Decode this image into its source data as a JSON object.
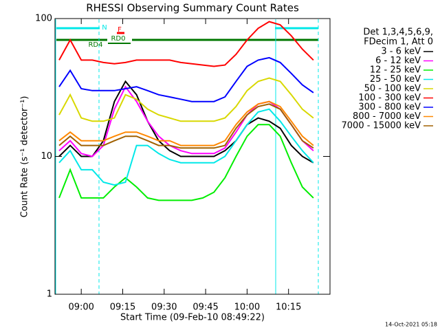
{
  "chart_data": {
    "type": "line",
    "title": "RHESSI Observing Summary Count Rates",
    "x_label": "Start Time (09-Feb-10 08:49:22)",
    "y_label": "Count Rate (s⁻¹ detector⁻¹)",
    "legend_header": [
      "Det 1,3,4,5,6,9,",
      "FDecim 1, Att 0"
    ],
    "timestamp": "14-Oct-2021 05:18",
    "annotations": [
      "N",
      "F",
      "RD0",
      "RD4"
    ],
    "ylog": true,
    "xlim": [
      "08:50:30",
      "10:30"
    ],
    "xticks": [
      "09:00",
      "09:15",
      "09:30",
      "09:45",
      "10:00",
      "10:15"
    ],
    "ylim": [
      1,
      100
    ],
    "yticks": [
      1,
      10,
      100
    ],
    "x": [
      "08:52",
      "08:56",
      "09:00",
      "09:04",
      "09:08",
      "09:12",
      "09:16",
      "09:20",
      "09:24",
      "09:28",
      "09:32",
      "09:36",
      "09:40",
      "09:44",
      "09:48",
      "09:52",
      "09:56",
      "10:00",
      "10:04",
      "10:08",
      "10:12",
      "10:16",
      "10:20",
      "10:24"
    ],
    "series": [
      {
        "name": "3 - 6 keV",
        "color": "#000000",
        "values": [
          10,
          12,
          10,
          10,
          13,
          25,
          35,
          28,
          18,
          13,
          11,
          10,
          10,
          10,
          10,
          11,
          13,
          17,
          19,
          18,
          16,
          12,
          10,
          9
        ]
      },
      {
        "name": "6 - 12 keV",
        "color": "#ff00ff",
        "values": [
          11,
          13,
          10.5,
          10,
          12,
          22,
          32,
          25,
          18,
          14,
          12,
          11,
          10.5,
          10.5,
          10.5,
          11.5,
          15,
          20,
          24,
          25,
          22,
          17,
          13,
          11
        ]
      },
      {
        "name": "12 - 25 keV",
        "color": "#00ee00",
        "values": [
          5,
          8,
          5,
          5,
          5,
          6,
          7,
          6,
          5,
          4.8,
          4.8,
          4.8,
          4.8,
          5,
          5.5,
          7,
          10,
          14,
          17,
          17,
          14,
          9,
          6,
          5
        ]
      },
      {
        "name": "25 - 50 keV",
        "color": "#00e8e8",
        "values": [
          9,
          11,
          8,
          8,
          6.5,
          6.2,
          6.5,
          12,
          12,
          10.5,
          9.5,
          9,
          9,
          9,
          9,
          10,
          13,
          17,
          21,
          22,
          18,
          14,
          11,
          9
        ]
      },
      {
        "name": "50 - 100 keV",
        "color": "#d8d800",
        "values": [
          20,
          28,
          19,
          18,
          18,
          19,
          28,
          26,
          22,
          20,
          19,
          18,
          18,
          18,
          18,
          19,
          23,
          30,
          35,
          37,
          35,
          28,
          22,
          19
        ]
      },
      {
        "name": "100 - 300 keV",
        "color": "#ff0000",
        "values": [
          50,
          70,
          50,
          50,
          48,
          47,
          48,
          50,
          50,
          50,
          50,
          48,
          47,
          46,
          45,
          46,
          55,
          70,
          85,
          95,
          90,
          75,
          60,
          50
        ]
      },
      {
        "name": "300 - 800 keV",
        "color": "#0000ff",
        "values": [
          32,
          42,
          31,
          30,
          30,
          30,
          31,
          32,
          30,
          28,
          27,
          26,
          25,
          25,
          25,
          27,
          35,
          45,
          50,
          52,
          48,
          40,
          33,
          29
        ]
      },
      {
        "name": "800 - 7000 keV",
        "color": "#ff8800",
        "values": [
          13,
          15,
          13,
          13,
          13,
          14,
          15,
          15,
          14,
          13,
          13,
          12,
          12,
          12,
          12,
          13,
          17,
          21,
          24,
          25,
          23,
          18,
          14,
          12
        ]
      },
      {
        "name": "7000 - 15000 keV",
        "color": "#a06000",
        "values": [
          12,
          14,
          12,
          12,
          12,
          13,
          14,
          14,
          13,
          12,
          12,
          11.5,
          11.5,
          11.5,
          11.5,
          12,
          16,
          20,
          23,
          24,
          22,
          17,
          13,
          11.5
        ]
      }
    ]
  }
}
